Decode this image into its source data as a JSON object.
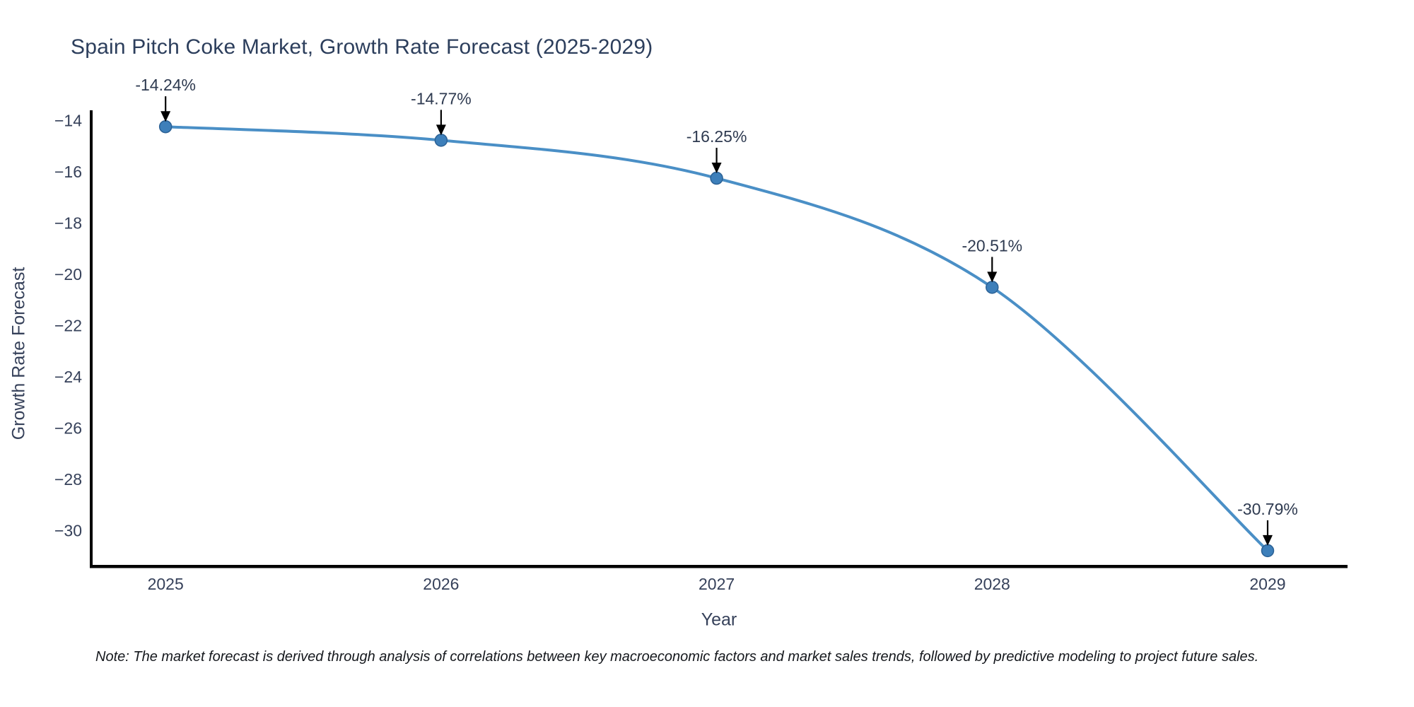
{
  "title": "Spain Pitch Coke Market, Growth Rate Forecast (2025-2029)",
  "note": "Note: The market forecast is derived through analysis of correlations between key macroeconomic factors and market sales trends, followed by predictive modeling to project future sales.",
  "x_axis": {
    "label": "Year",
    "ticks": [
      "2025",
      "2026",
      "2027",
      "2028",
      "2029"
    ]
  },
  "y_axis": {
    "label": "Growth Rate Forecast",
    "ticks": [
      -14,
      -16,
      -18,
      -20,
      -22,
      -24,
      -26,
      -28,
      -30
    ]
  },
  "colors": {
    "line": "#4a8fc6",
    "marker_fill": "#3d7fba",
    "marker_edge": "#2b6195",
    "axis_line": "#000000",
    "title_text": "#2c3e5c",
    "tick_text": "#36415a",
    "annotation_text": "#2e3a50",
    "arrow": "#000000",
    "note_text": "#15181d"
  },
  "chart_data": {
    "type": "line",
    "line_shape": "spline",
    "x": [
      2025,
      2026,
      2027,
      2028,
      2029
    ],
    "values": [
      -14.24,
      -14.77,
      -16.25,
      -20.51,
      -30.79
    ],
    "point_labels": [
      "-14.24%",
      "-14.77%",
      "-16.25%",
      "-20.51%",
      "-30.79%"
    ],
    "series_name": "Growth Rate Forecast",
    "title": "Spain Pitch Coke Market, Growth Rate Forecast (2025-2029)",
    "xlabel": "Year",
    "ylabel": "Growth Rate Forecast",
    "ylim": [
      -31.4,
      -13.6
    ],
    "xlim": [
      2024.725,
      2029.29
    ],
    "grid": false,
    "legend": false,
    "annotations": "arrow-down-to-each-point"
  }
}
